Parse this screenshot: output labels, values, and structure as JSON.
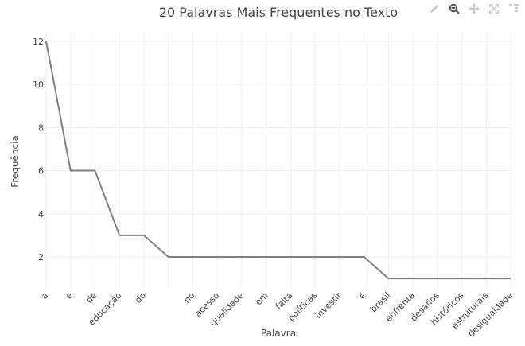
{
  "modebar": {
    "icons": [
      "pencil-icon",
      "zoom-icon",
      "pan-icon",
      "autoscale-icon",
      "more-icon"
    ],
    "active": "zoom-icon"
  },
  "colors": {
    "line": "#808080",
    "grid": "#eeeeee",
    "text": "#444444",
    "title": "#444444",
    "modebar_icon": "#c8c8c8",
    "modebar_active": "#555555"
  },
  "chart_data": {
    "type": "line",
    "title": "20 Palavras Mais Frequentes no Texto",
    "xlabel": "Palavra",
    "ylabel": "Frequência",
    "categories": [
      "a",
      "e",
      "de",
      "educação",
      "do",
      "",
      "no",
      "acesso",
      "qualidade",
      "em",
      "falta",
      "políticas",
      "investir",
      "é",
      "brasil",
      "enfrenta",
      "desafios",
      "históricos",
      "estruturais",
      "desigualdade"
    ],
    "values": [
      12,
      6,
      6,
      3,
      3,
      2,
      2,
      2,
      2,
      2,
      2,
      2,
      2,
      2,
      1,
      1,
      1,
      1,
      1,
      1
    ],
    "yticks": [
      2,
      4,
      6,
      8,
      10,
      12
    ],
    "ylim": [
      0.6,
      12.4
    ],
    "grid": true,
    "legend": "none"
  }
}
